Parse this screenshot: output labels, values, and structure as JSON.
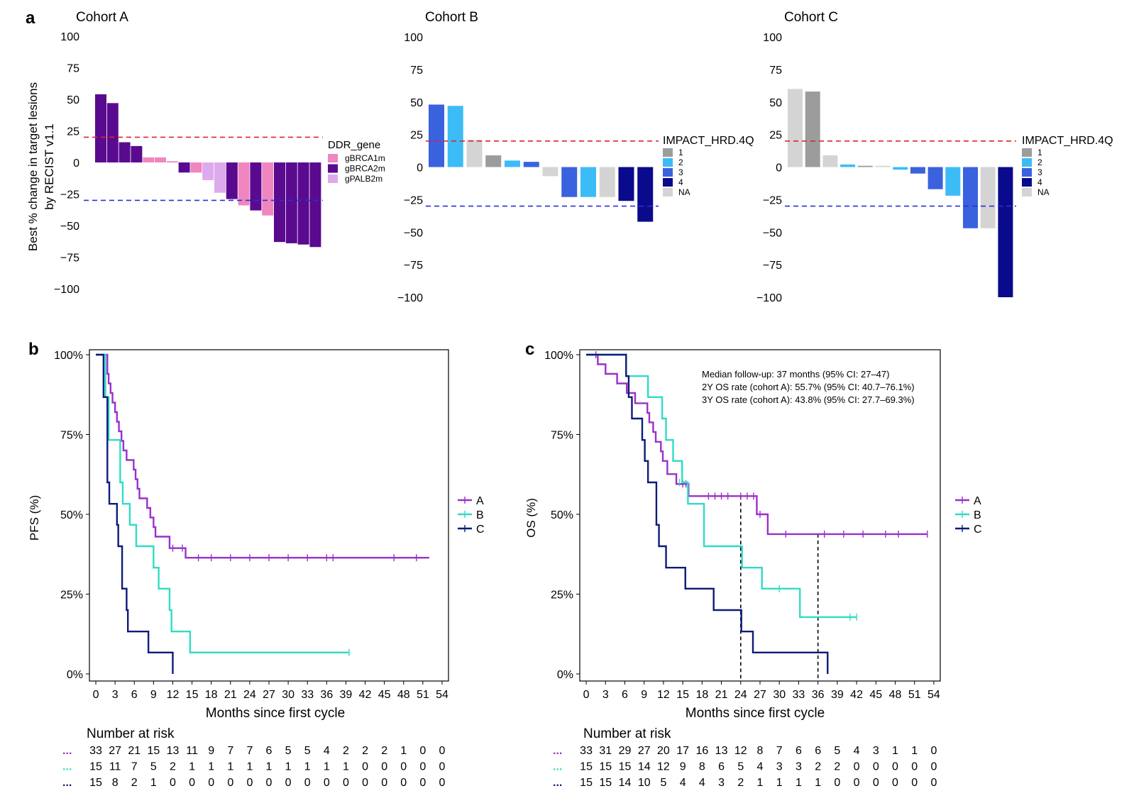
{
  "panel_a": {
    "label": "a",
    "ylabel_line1": "Best % change in target lesions",
    "ylabel_line2": "by RECIST v1.1",
    "yticks": [
      "100",
      "75",
      "50",
      "25",
      "0",
      "−25",
      "−50",
      "−75",
      "−100"
    ],
    "ref_lines": [
      20,
      -30
    ]
  },
  "panel_b": {
    "label": "b",
    "ylabel": "PFS (%)",
    "xlabel": "Months since first cycle",
    "yticks": [
      "0%",
      "25%",
      "50%",
      "75%",
      "100%"
    ],
    "risk_title": "Number at risk",
    "legend": [
      "A",
      "B",
      "C"
    ]
  },
  "panel_c": {
    "label": "c",
    "ylabel": "OS (%)",
    "xlabel": "Months since first cycle",
    "yticks": [
      "0%",
      "25%",
      "50%",
      "75%",
      "100%"
    ],
    "risk_title": "Number at risk",
    "legend": [
      "A",
      "B",
      "C"
    ],
    "annotations": [
      "Median follow-up: 37 months (95% CI: 27–47)",
      "2Y OS rate (cohort A): 55.7% (95% CI: 40.7–76.1%)",
      "3Y OS rate (cohort A): 43.8% (95% CI: 27.7–69.3%)"
    ]
  },
  "colors": {
    "A": "#9b30c8",
    "B": "#2fdcc4",
    "C": "#0c1b7a",
    "gBRCA1m": "#ef86c0",
    "gBRCA2m": "#5a0a8f",
    "gPALB2m": "#ddaaee",
    "hrd1": "#9c9c9c",
    "hrd2": "#3cbcf6",
    "hrd3": "#3a62de",
    "hrd4": "#0a0a8c",
    "hrdNA": "#d4d4d4",
    "ref_red": "#e0242a",
    "ref_blue": "#2a30d0"
  },
  "chart_data": [
    {
      "type": "bar",
      "title": "Cohort A",
      "ylabel": "Best % change in target lesions by RECIST v1.1",
      "ylim": [
        -100,
        100
      ],
      "legend_title": "DDR_gene",
      "legend": [
        "gBRCA1m",
        "gBRCA2m",
        "gPALB2m"
      ],
      "values": [
        54,
        47,
        16,
        13,
        4,
        4,
        1,
        -8,
        -8,
        -14,
        -24,
        -29,
        -34,
        -38,
        -42,
        -63,
        -64,
        -65,
        -67
      ],
      "groups": [
        "gBRCA2m",
        "gBRCA2m",
        "gBRCA2m",
        "gBRCA2m",
        "gBRCA1m",
        "gBRCA1m",
        "gBRCA1m",
        "gBRCA2m",
        "gBRCA1m",
        "gPALB2m",
        "gPALB2m",
        "gBRCA2m",
        "gBRCA1m",
        "gBRCA2m",
        "gBRCA1m",
        "gBRCA2m",
        "gBRCA2m",
        "gBRCA2m",
        "gBRCA2m"
      ],
      "ref_lines": [
        20,
        -30
      ]
    },
    {
      "type": "bar",
      "title": "Cohort B",
      "ylim": [
        -100,
        100
      ],
      "legend_title": "IMPACT_HRD.4Q",
      "legend": [
        "1",
        "2",
        "3",
        "4",
        "NA"
      ],
      "values": [
        48,
        47,
        21,
        9,
        5,
        4,
        -7,
        -23,
        -23,
        -23,
        -26,
        -42
      ],
      "groups": [
        "3",
        "2",
        "NA",
        "1",
        "2",
        "3",
        "NA",
        "3",
        "2",
        "NA",
        "4",
        "4"
      ],
      "ref_lines": [
        20,
        -30
      ]
    },
    {
      "type": "bar",
      "title": "Cohort C",
      "ylim": [
        -100,
        100
      ],
      "legend_title": "IMPACT_HRD.4Q",
      "legend": [
        "1",
        "2",
        "3",
        "4",
        "NA"
      ],
      "values": [
        60,
        58,
        9,
        2,
        1,
        1,
        -2,
        -5,
        -17,
        -22,
        -47,
        -47,
        -100
      ],
      "groups": [
        "NA",
        "1",
        "NA",
        "2",
        "1",
        "NA",
        "2",
        "3",
        "3",
        "2",
        "3",
        "NA",
        "4"
      ],
      "ref_lines": [
        20,
        -30
      ]
    },
    {
      "type": "line",
      "title": "",
      "xlabel": "Months since first cycle",
      "ylabel": "PFS (%)",
      "xlim": [
        -1,
        55
      ],
      "ylim": [
        0,
        100
      ],
      "x_ticks": [
        0,
        3,
        6,
        9,
        12,
        15,
        18,
        21,
        24,
        27,
        30,
        33,
        36,
        39,
        42,
        45,
        48,
        51,
        54
      ],
      "series": [
        {
          "name": "A",
          "steps": [
            [
              0,
              100
            ],
            [
              1.8,
              94
            ],
            [
              2,
              91
            ],
            [
              2.3,
              88
            ],
            [
              2.6,
              85
            ],
            [
              3,
              82
            ],
            [
              3.3,
              79
            ],
            [
              3.6,
              76
            ],
            [
              4,
              73
            ],
            [
              4.3,
              70
            ],
            [
              4.8,
              67
            ],
            [
              5.9,
              64
            ],
            [
              6.2,
              61
            ],
            [
              6.5,
              58
            ],
            [
              6.8,
              55
            ],
            [
              8,
              52
            ],
            [
              8.5,
              49
            ],
            [
              9,
              46
            ],
            [
              9.3,
              43
            ],
            [
              11.5,
              39.4
            ],
            [
              14,
              36.4
            ],
            [
              52,
              36.4
            ]
          ],
          "censor": [
            [
              12,
              39.4
            ],
            [
              13.5,
              39.4
            ],
            [
              16,
              36.4
            ],
            [
              18,
              36.4
            ],
            [
              21,
              36.4
            ],
            [
              24,
              36.4
            ],
            [
              27,
              36.4
            ],
            [
              30,
              36.4
            ],
            [
              33,
              36.4
            ],
            [
              36,
              36.4
            ],
            [
              37,
              36.4
            ],
            [
              46.5,
              36.4
            ],
            [
              50,
              36.4
            ]
          ]
        },
        {
          "name": "B",
          "steps": [
            [
              0,
              100
            ],
            [
              1.5,
              86.7
            ],
            [
              2,
              73.3
            ],
            [
              3.8,
              60
            ],
            [
              4.2,
              53.3
            ],
            [
              5.3,
              46.7
            ],
            [
              6.3,
              40
            ],
            [
              9,
              33.3
            ],
            [
              9.8,
              26.7
            ],
            [
              11.5,
              20
            ],
            [
              11.8,
              13.3
            ],
            [
              14.7,
              6.7
            ],
            [
              39.5,
              6.7
            ]
          ],
          "censor": [
            [
              39.5,
              6.7
            ]
          ]
        },
        {
          "name": "C",
          "steps": [
            [
              0,
              100
            ],
            [
              1.2,
              86.7
            ],
            [
              1.8,
              60
            ],
            [
              2.1,
              53.3
            ],
            [
              3.3,
              46.7
            ],
            [
              3.5,
              40
            ],
            [
              4.1,
              26.7
            ],
            [
              4.8,
              20
            ],
            [
              5,
              13.3
            ],
            [
              8.2,
              6.7
            ],
            [
              12,
              0
            ]
          ],
          "censor": []
        }
      ],
      "risk_table": {
        "title": "Number at risk",
        "A": [
          33,
          27,
          21,
          15,
          13,
          11,
          9,
          7,
          7,
          6,
          5,
          5,
          4,
          2,
          2,
          2,
          1,
          0,
          0
        ],
        "B": [
          15,
          11,
          7,
          5,
          2,
          1,
          1,
          1,
          1,
          1,
          1,
          1,
          1,
          1,
          0,
          0,
          0,
          0,
          0
        ],
        "C": [
          15,
          8,
          2,
          1,
          0,
          0,
          0,
          0,
          0,
          0,
          0,
          0,
          0,
          0,
          0,
          0,
          0,
          0,
          0
        ]
      }
    },
    {
      "type": "line",
      "title": "",
      "xlabel": "Months since first cycle",
      "ylabel": "OS (%)",
      "xlim": [
        -1,
        55
      ],
      "ylim": [
        0,
        100
      ],
      "x_ticks": [
        0,
        3,
        6,
        9,
        12,
        15,
        18,
        21,
        24,
        27,
        30,
        33,
        36,
        39,
        42,
        45,
        48,
        51,
        54
      ],
      "series": [
        {
          "name": "A",
          "steps": [
            [
              0,
              100
            ],
            [
              1.8,
              97
            ],
            [
              3,
              94
            ],
            [
              4.8,
              91
            ],
            [
              6.3,
              88
            ],
            [
              7.6,
              84.8
            ],
            [
              9.5,
              81.8
            ],
            [
              9.8,
              78.8
            ],
            [
              10.4,
              75.8
            ],
            [
              10.8,
              72.7
            ],
            [
              11.6,
              69.7
            ],
            [
              11.9,
              66.7
            ],
            [
              12.6,
              62.6
            ],
            [
              14,
              59.5
            ],
            [
              15.9,
              55.7
            ],
            [
              26.5,
              50
            ],
            [
              28.2,
              43.8
            ],
            [
              53,
              43.8
            ]
          ],
          "censor": [
            [
              1.5,
              100
            ],
            [
              15,
              59.5
            ],
            [
              15.5,
              59.5
            ],
            [
              19,
              55.7
            ],
            [
              20,
              55.7
            ],
            [
              21,
              55.7
            ],
            [
              22,
              55.7
            ],
            [
              24,
              55.7
            ],
            [
              25,
              55.7
            ],
            [
              26,
              55.7
            ],
            [
              27,
              50
            ],
            [
              31,
              43.8
            ],
            [
              37,
              43.8
            ],
            [
              40,
              43.8
            ],
            [
              43,
              43.8
            ],
            [
              46.5,
              43.8
            ],
            [
              48.5,
              43.8
            ],
            [
              53,
              43.8
            ]
          ]
        },
        {
          "name": "B",
          "steps": [
            [
              0,
              100
            ],
            [
              6.2,
              93.3
            ],
            [
              9.6,
              86.7
            ],
            [
              11.8,
              80
            ],
            [
              12.4,
              73.3
            ],
            [
              13.5,
              66.7
            ],
            [
              14.9,
              60
            ],
            [
              15.8,
              53.3
            ],
            [
              18.3,
              40
            ],
            [
              24.2,
              33.3
            ],
            [
              27.3,
              26.7
            ],
            [
              33.2,
              17.8
            ],
            [
              42,
              17.8
            ]
          ],
          "censor": [
            [
              14.5,
              60
            ],
            [
              30,
              26.7
            ],
            [
              41,
              17.8
            ],
            [
              42,
              17.8
            ]
          ]
        },
        {
          "name": "C",
          "steps": [
            [
              0,
              100
            ],
            [
              6.2,
              93.3
            ],
            [
              6.6,
              86.7
            ],
            [
              7.1,
              80
            ],
            [
              8.7,
              73.3
            ],
            [
              9.1,
              66.7
            ],
            [
              9.6,
              60
            ],
            [
              10.9,
              46.7
            ],
            [
              11.3,
              40
            ],
            [
              12.4,
              33.3
            ],
            [
              15.4,
              26.7
            ],
            [
              19.8,
              20
            ],
            [
              24.1,
              13.3
            ],
            [
              25.9,
              6.7
            ],
            [
              37.5,
              0
            ]
          ],
          "censor": []
        }
      ],
      "vlines": [
        24,
        36
      ],
      "risk_table": {
        "title": "Number at risk",
        "A": [
          33,
          31,
          29,
          27,
          20,
          17,
          16,
          13,
          12,
          8,
          7,
          6,
          6,
          5,
          4,
          3,
          1,
          1,
          0
        ],
        "B": [
          15,
          15,
          15,
          14,
          12,
          9,
          8,
          6,
          5,
          4,
          3,
          3,
          2,
          2,
          0,
          0,
          0,
          0,
          0
        ],
        "C": [
          15,
          15,
          14,
          10,
          5,
          4,
          4,
          3,
          2,
          1,
          1,
          1,
          1,
          0,
          0,
          0,
          0,
          0,
          0
        ]
      }
    }
  ]
}
